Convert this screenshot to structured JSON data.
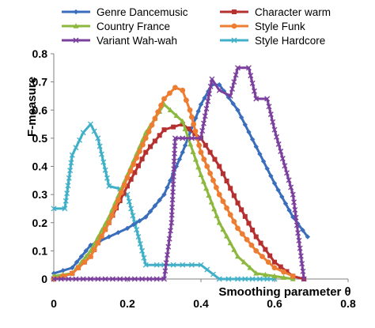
{
  "chart_data": {
    "type": "line",
    "xlabel": "Smoothing parameter θ",
    "ylabel": "F-measure",
    "xlim": [
      0,
      0.8
    ],
    "ylim": [
      0,
      0.8
    ],
    "x_ticks": [
      0,
      0.2,
      0.4,
      0.6,
      0.8
    ],
    "y_ticks": [
      0,
      0.1,
      0.2,
      0.3,
      0.4,
      0.5,
      0.6,
      0.7,
      0.8
    ],
    "x_tick_labels": [
      "0",
      "0.2",
      "0.4",
      "0.6",
      "0.8"
    ],
    "y_tick_labels": [
      "0",
      "0.1",
      "0.2",
      "0.3",
      "0.4",
      "0.5",
      "0.6",
      "0.7",
      "0.8"
    ],
    "grid": false,
    "legend_position": "top",
    "series": [
      {
        "name": "Genre Dancemusic",
        "color": "#3a6ebd",
        "marker": "diamond",
        "x": [
          0,
          0.05,
          0.1,
          0.15,
          0.2,
          0.25,
          0.3,
          0.35,
          0.4,
          0.43,
          0.45,
          0.5,
          0.55,
          0.6,
          0.65,
          0.69
        ],
        "y": [
          0.02,
          0.04,
          0.12,
          0.15,
          0.18,
          0.22,
          0.3,
          0.45,
          0.62,
          0.69,
          0.69,
          0.6,
          0.47,
          0.34,
          0.22,
          0.15
        ]
      },
      {
        "name": "Character warm",
        "color": "#b5302e",
        "marker": "square",
        "x": [
          0,
          0.05,
          0.1,
          0.15,
          0.2,
          0.25,
          0.3,
          0.35,
          0.4,
          0.45,
          0.5,
          0.55,
          0.6,
          0.65,
          0.68
        ],
        "y": [
          0,
          0.02,
          0.08,
          0.2,
          0.33,
          0.45,
          0.53,
          0.55,
          0.5,
          0.4,
          0.27,
          0.15,
          0.06,
          0.01,
          0
        ]
      },
      {
        "name": "Country France",
        "color": "#8cb83e",
        "marker": "triangle",
        "x": [
          0,
          0.05,
          0.1,
          0.15,
          0.2,
          0.25,
          0.3,
          0.35,
          0.4,
          0.45,
          0.5,
          0.55,
          0.6,
          0.65
        ],
        "y": [
          0.01,
          0.02,
          0.1,
          0.22,
          0.37,
          0.52,
          0.62,
          0.56,
          0.37,
          0.2,
          0.08,
          0.02,
          0.01,
          0
        ]
      },
      {
        "name": "Style Funk",
        "color": "#ed7d31",
        "marker": "circle",
        "x": [
          0,
          0.05,
          0.1,
          0.15,
          0.2,
          0.25,
          0.3,
          0.33,
          0.35,
          0.37,
          0.4,
          0.45,
          0.5,
          0.55,
          0.6,
          0.65
        ],
        "y": [
          0,
          0.02,
          0.08,
          0.2,
          0.36,
          0.5,
          0.64,
          0.68,
          0.67,
          0.6,
          0.45,
          0.3,
          0.18,
          0.1,
          0.04,
          0.01
        ]
      },
      {
        "name": "Variant Wah-wah",
        "color": "#7b3f9e",
        "marker": "x",
        "x": [
          0,
          0.1,
          0.2,
          0.3,
          0.32,
          0.33,
          0.35,
          0.4,
          0.43,
          0.45,
          0.48,
          0.5,
          0.53,
          0.55,
          0.58,
          0.6,
          0.65,
          0.68
        ],
        "y": [
          0,
          0,
          0,
          0,
          0.2,
          0.5,
          0.5,
          0.5,
          0.71,
          0.67,
          0.65,
          0.75,
          0.75,
          0.64,
          0.64,
          0.53,
          0.3,
          0
        ]
      },
      {
        "name": "Style Hardcore",
        "color": "#40b0c8",
        "marker": "x",
        "x": [
          0,
          0.03,
          0.05,
          0.08,
          0.1,
          0.12,
          0.15,
          0.18,
          0.2,
          0.25,
          0.28,
          0.3,
          0.35,
          0.4,
          0.45,
          0.5,
          0.6
        ],
        "y": [
          0.25,
          0.25,
          0.44,
          0.52,
          0.55,
          0.5,
          0.33,
          0.32,
          0.3,
          0.05,
          0.05,
          0.05,
          0.05,
          0.05,
          0,
          0,
          0
        ]
      }
    ]
  }
}
